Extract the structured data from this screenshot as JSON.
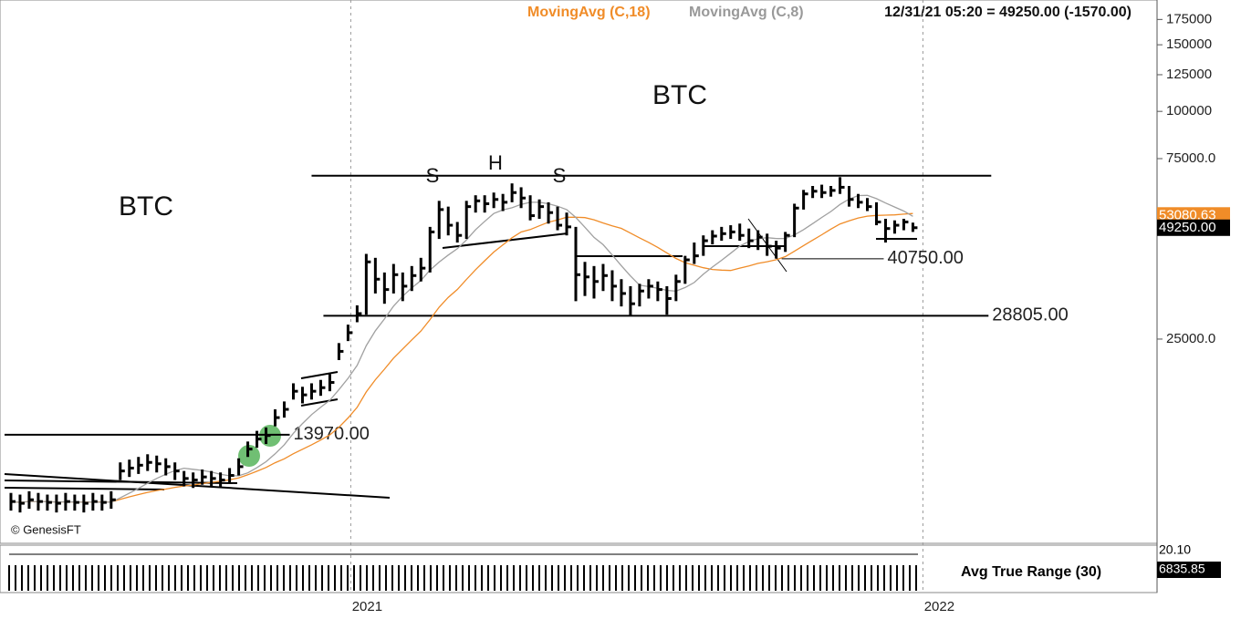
{
  "chart_data": {
    "type": "ohlc",
    "header": {
      "ma_long": "MovingAvg (C,18)",
      "ma_short": "MovingAvg (C,8)",
      "quote": "12/31/21 05:20 = 49250.00 (-1570.00)"
    },
    "log_scale": true,
    "ylim": [
      7250,
      197000
    ],
    "yticks": [
      {
        "value": 25000,
        "label": "25000.0"
      },
      {
        "value": 75000,
        "label": "75000.0"
      },
      100000,
      125000,
      150000,
      175000
    ],
    "xlim": [
      -1.2,
      125.8
    ],
    "xticks": [
      {
        "value": 37.3,
        "label": "2021"
      },
      {
        "value": 100.1,
        "label": "2022"
      }
    ],
    "categories": [
      null,
      null,
      null,
      null,
      null,
      null,
      null,
      null,
      null,
      null,
      null,
      null,
      null,
      null,
      null,
      null,
      null,
      null,
      null,
      null,
      null,
      null,
      null,
      null,
      null,
      null,
      null,
      null,
      null,
      null,
      null,
      null,
      null,
      null,
      null,
      null,
      null,
      null,
      null,
      null,
      null,
      null,
      null,
      null,
      null,
      null,
      null,
      null,
      null,
      null,
      null,
      null,
      null,
      null,
      null,
      null,
      null,
      null,
      null,
      null,
      null,
      null,
      null,
      null,
      null,
      null,
      null,
      null,
      null,
      null,
      null,
      null,
      null,
      null,
      null,
      null,
      null,
      null,
      null,
      null,
      null,
      null,
      null,
      null,
      null,
      null,
      null,
      null,
      null,
      null,
      null,
      null,
      null,
      null,
      null,
      null,
      null,
      null,
      null,
      null
    ],
    "color": "#000000",
    "close": [
      9300,
      9200,
      9400,
      9300,
      9250,
      9200,
      9300,
      9250,
      9200,
      9300,
      9250,
      9400,
      11200,
      11400,
      11600,
      11800,
      11700,
      11500,
      11200,
      10700,
      10600,
      10800,
      10700,
      10600,
      10900,
      11500,
      12800,
      13600,
      13900,
      15500,
      16300,
      18200,
      17800,
      18200,
      18600,
      19200,
      23200,
      26000,
      29200,
      40000,
      36000,
      33800,
      37000,
      34500,
      36800,
      38500,
      48000,
      55000,
      50000,
      47000,
      56000,
      58000,
      57000,
      58500,
      57500,
      61000,
      59000,
      53000,
      56000,
      54000,
      50000,
      49500,
      37000,
      36500,
      35500,
      36800,
      34500,
      33000,
      31000,
      33500,
      34500,
      33800,
      32000,
      35500,
      40500,
      41500,
      45500,
      46800,
      47500,
      48000,
      47000,
      45500,
      46500,
      44000,
      43500,
      47000,
      55500,
      60500,
      61500,
      61000,
      61800,
      63000,
      58500,
      57500,
      56000,
      51000,
      49000,
      50000,
      51000,
      49250
    ],
    "high": [
      9800,
      9700,
      9900,
      9800,
      9700,
      9700,
      9800,
      9700,
      9700,
      9800,
      9700,
      9900,
      11800,
      12000,
      12200,
      12400,
      12300,
      12100,
      11800,
      11200,
      11100,
      11300,
      11200,
      11100,
      11400,
      12100,
      13400,
      14300,
      14600,
      16300,
      17100,
      19100,
      18700,
      19100,
      19500,
      20200,
      24400,
      27300,
      30700,
      42000,
      41000,
      37500,
      39500,
      37500,
      39000,
      41000,
      49500,
      58000,
      56000,
      51000,
      58000,
      60000,
      60000,
      61000,
      60500,
      64500,
      63000,
      60000,
      58500,
      57500,
      56000,
      54000,
      49500,
      40000,
      39000,
      39500,
      38000,
      36000,
      34500,
      35000,
      36000,
      35500,
      34500,
      37000,
      41500,
      45000,
      47000,
      48500,
      49500,
      50000,
      50500,
      49000,
      48500,
      47500,
      45500,
      48000,
      57000,
      62000,
      63500,
      64000,
      63500,
      67000,
      63500,
      60500,
      59000,
      57500,
      52000,
      51500,
      52000,
      50800
    ],
    "low": [
      8800,
      8700,
      8900,
      8800,
      8800,
      8700,
      8800,
      8800,
      8700,
      8800,
      8800,
      8900,
      10600,
      10800,
      11000,
      11200,
      11100,
      10900,
      10600,
      10200,
      10100,
      10300,
      10200,
      10100,
      10400,
      10900,
      12200,
      12900,
      13200,
      14700,
      15500,
      17300,
      16900,
      17300,
      17700,
      18200,
      22000,
      24700,
      27700,
      29000,
      33000,
      31000,
      33000,
      31500,
      33500,
      35500,
      37500,
      46000,
      47000,
      45000,
      46000,
      54000,
      54000,
      55500,
      54500,
      57500,
      55500,
      51500,
      52000,
      50500,
      48500,
      47000,
      31500,
      32500,
      32000,
      33500,
      31500,
      30500,
      28800,
      30500,
      32000,
      31500,
      29000,
      31500,
      35000,
      39500,
      41500,
      44500,
      45500,
      46000,
      45500,
      43500,
      43000,
      41500,
      40800,
      42500,
      46500,
      55000,
      59000,
      59000,
      59500,
      60500,
      56000,
      55500,
      54500,
      50000,
      45000,
      47500,
      48500,
      48000
    ],
    "moving_averages": [
      {
        "name": "MovingAvg (C,18)",
        "period": 18,
        "color": "#f08c28"
      },
      {
        "name": "MovingAvg (C,8)",
        "period": 8,
        "color": "#a0a0a0"
      }
    ],
    "levels": [
      {
        "value": 67600,
        "from": 33,
        "to": 107.6
      },
      {
        "value": 28805,
        "label": "28805.00",
        "from": 34.3,
        "to": 107.3
      },
      {
        "value": 40750,
        "label": "40750.00",
        "from": 84.6,
        "to": 95.8
      },
      {
        "value": 13970,
        "label": "13970.00",
        "from": -0.7,
        "to": 30.6
      }
    ],
    "annotations": [
      "BTC",
      "BTC",
      "S",
      "H",
      "S",
      "© GenesisFT"
    ],
    "price_labels": [
      {
        "value": 53080.63,
        "label": "53080.63",
        "color": "#f08c28"
      },
      {
        "value": 49250,
        "label": "49250.00",
        "color": "#000000"
      }
    ],
    "atr": {
      "name": "Avg True Range (30)",
      "scale_top": "20.10",
      "last": "6835.85"
    }
  }
}
